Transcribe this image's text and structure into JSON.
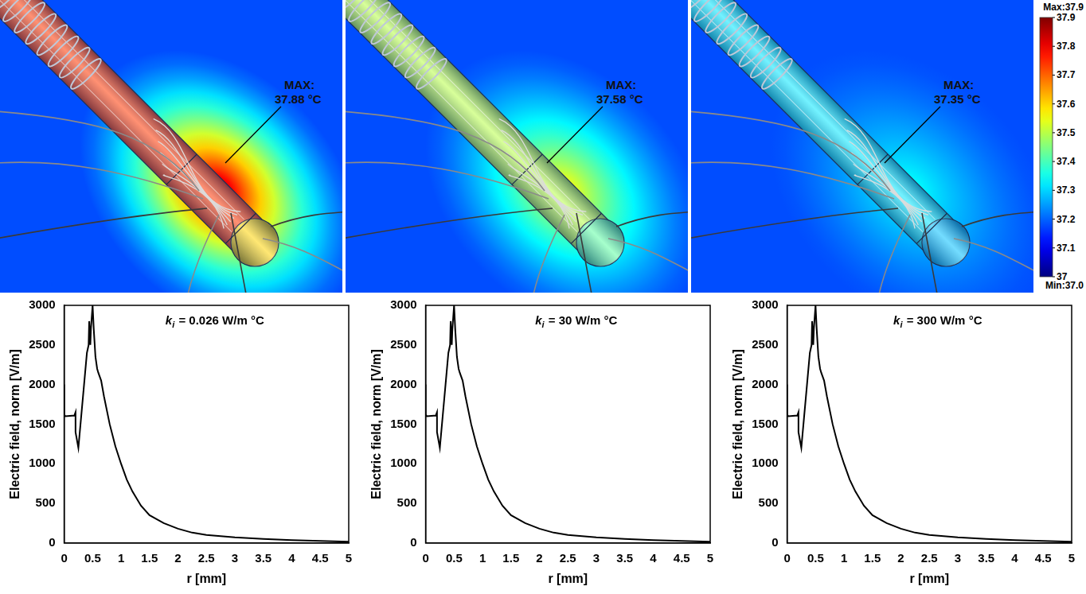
{
  "chart_data": [
    {
      "type": "line",
      "title": "ki = 0.026 W/m °C",
      "x_label": "r [mm]",
      "y_label": "Electric field, norm [V/m]",
      "x": [
        0,
        0,
        0.02,
        0.18,
        0.2,
        0.2,
        0.25,
        0.3,
        0.35,
        0.4,
        0.43,
        0.44,
        0.46,
        0.47,
        0.5,
        0.52,
        0.55,
        0.58,
        0.6,
        0.65,
        0.7,
        0.8,
        0.9,
        1.0,
        1.1,
        1.2,
        1.35,
        1.5,
        1.75,
        2,
        2.25,
        2.5,
        3,
        3.5,
        4,
        4.5,
        5
      ],
      "values": [
        2000,
        1620,
        1600,
        1610,
        1650,
        1400,
        1200,
        1600,
        2000,
        2400,
        2500,
        2800,
        2500,
        2700,
        3000,
        2700,
        2350,
        2200,
        2150,
        2050,
        1850,
        1500,
        1220,
        1000,
        800,
        650,
        470,
        350,
        250,
        180,
        130,
        100,
        70,
        50,
        35,
        25,
        15
      ],
      "color": "#000000",
      "xlim": [
        0,
        5
      ],
      "ylim": [
        0,
        3000
      ],
      "xticks": [
        0,
        0.5,
        1,
        1.5,
        2,
        2.5,
        3,
        3.5,
        4,
        4.5,
        5
      ],
      "yticks": [
        0,
        500,
        1000,
        1500,
        2000,
        2500,
        3000
      ],
      "grid": false
    },
    {
      "type": "line",
      "title": "ki = 30 W/m °C",
      "x_label": "r [mm]",
      "y_label": "Electric field, norm [V/m]",
      "x": [
        0,
        0,
        0.02,
        0.18,
        0.2,
        0.2,
        0.25,
        0.3,
        0.35,
        0.4,
        0.43,
        0.44,
        0.46,
        0.47,
        0.5,
        0.52,
        0.55,
        0.58,
        0.6,
        0.65,
        0.7,
        0.8,
        0.9,
        1.0,
        1.1,
        1.2,
        1.35,
        1.5,
        1.75,
        2,
        2.25,
        2.5,
        3,
        3.5,
        4,
        4.5,
        5
      ],
      "values": [
        2000,
        1620,
        1600,
        1610,
        1650,
        1400,
        1200,
        1600,
        2000,
        2400,
        2500,
        2800,
        2500,
        2700,
        3000,
        2700,
        2350,
        2200,
        2150,
        2050,
        1850,
        1500,
        1220,
        1000,
        800,
        650,
        470,
        350,
        250,
        180,
        130,
        100,
        70,
        50,
        35,
        25,
        15
      ],
      "color": "#000000",
      "xlim": [
        0,
        5
      ],
      "ylim": [
        0,
        3000
      ],
      "xticks": [
        0,
        0.5,
        1,
        1.5,
        2,
        2.5,
        3,
        3.5,
        4,
        4.5,
        5
      ],
      "yticks": [
        0,
        500,
        1000,
        1500,
        2000,
        2500,
        3000
      ],
      "grid": false
    },
    {
      "type": "line",
      "title": "ki = 300 W/m °C",
      "x_label": "r [mm]",
      "y_label": "Electric field, norm [V/m]",
      "x": [
        0,
        0,
        0.02,
        0.18,
        0.2,
        0.2,
        0.25,
        0.3,
        0.35,
        0.4,
        0.43,
        0.44,
        0.46,
        0.47,
        0.5,
        0.52,
        0.55,
        0.58,
        0.6,
        0.65,
        0.7,
        0.8,
        0.9,
        1.0,
        1.1,
        1.2,
        1.35,
        1.5,
        1.75,
        2,
        2.25,
        2.5,
        3,
        3.5,
        4,
        4.5,
        5
      ],
      "values": [
        2000,
        1620,
        1600,
        1610,
        1650,
        1400,
        1200,
        1600,
        2000,
        2400,
        2500,
        2800,
        2500,
        2700,
        3000,
        2700,
        2350,
        2200,
        2150,
        2050,
        1850,
        1500,
        1220,
        1000,
        800,
        650,
        470,
        350,
        250,
        180,
        130,
        100,
        70,
        50,
        35,
        25,
        15
      ],
      "color": "#000000",
      "xlim": [
        0,
        5
      ],
      "ylim": [
        0,
        3000
      ],
      "xticks": [
        0,
        0.5,
        1,
        1.5,
        2,
        2.5,
        3,
        3.5,
        4,
        4.5,
        5
      ],
      "yticks": [
        0,
        500,
        1000,
        1500,
        2000,
        2500,
        3000
      ],
      "grid": false
    }
  ],
  "temperature_maps": [
    {
      "annotation": "MAX:",
      "max": 37.88,
      "unit": "°C"
    },
    {
      "annotation": "MAX:",
      "max": 37.58,
      "unit": "°C"
    },
    {
      "annotation": "MAX:",
      "max": 37.35,
      "unit": "°C"
    }
  ],
  "colorbar": {
    "max_label": "Max:37.9",
    "min_label": "Min:37.0",
    "range": [
      37,
      37.9
    ],
    "ticks": [
      37,
      37.1,
      37.2,
      37.3,
      37.4,
      37.5,
      37.6,
      37.7,
      37.8,
      37.9
    ]
  }
}
